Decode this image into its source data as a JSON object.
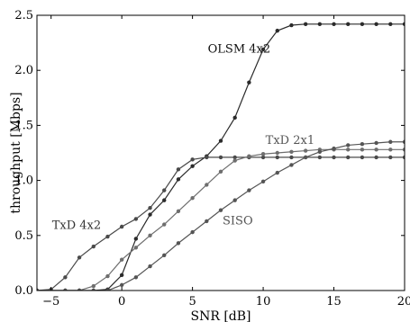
{
  "chart_data": {
    "type": "line",
    "xlabel": "SNR [dB]",
    "ylabel": "throughput [Mbps]",
    "xlim": [
      -6,
      20
    ],
    "ylim": [
      0,
      2.5
    ],
    "xticks": [
      -5,
      0,
      5,
      10,
      15,
      20
    ],
    "yticks": [
      0,
      0.5,
      1,
      1.5,
      2,
      2.5
    ],
    "xtick_labels": [
      "−5",
      "0",
      "5",
      "10",
      "15",
      "20"
    ],
    "ytick_labels": [
      "0.0",
      "0.5",
      "1.0",
      "1.5",
      "2.0",
      "2.5"
    ],
    "grid": false,
    "series": [
      {
        "name": "OLSM 4x2",
        "color": "#2b2b2b",
        "x": [
          -6,
          -5,
          -4,
          -3,
          -2,
          -1,
          0,
          1,
          2,
          3,
          4,
          5,
          6,
          7,
          8,
          9,
          10,
          11,
          12,
          13,
          14,
          15,
          16,
          17,
          18,
          19,
          20
        ],
        "y": [
          0,
          0,
          0,
          0,
          0,
          0.01,
          0.14,
          0.47,
          0.69,
          0.82,
          1.01,
          1.13,
          1.22,
          1.36,
          1.57,
          1.89,
          2.19,
          2.36,
          2.41,
          2.42,
          2.42,
          2.42,
          2.42,
          2.42,
          2.42,
          2.42,
          2.42
        ]
      },
      {
        "name": "TxD 4x2",
        "color": "#4a4a4a",
        "x": [
          -6,
          -5,
          -4,
          -3,
          -2,
          -1,
          0,
          1,
          2,
          3,
          4,
          5,
          6,
          7,
          8,
          9,
          10,
          11,
          12,
          13,
          14,
          15,
          16,
          17,
          18,
          19,
          20
        ],
        "y": [
          0,
          0.01,
          0.12,
          0.3,
          0.4,
          0.49,
          0.58,
          0.65,
          0.75,
          0.91,
          1.1,
          1.19,
          1.21,
          1.21,
          1.21,
          1.21,
          1.21,
          1.21,
          1.21,
          1.21,
          1.21,
          1.21,
          1.21,
          1.21,
          1.21,
          1.21,
          1.21
        ]
      },
      {
        "name": "TxD 2x1",
        "color": "#6e6e6e",
        "x": [
          -6,
          -5,
          -4,
          -3,
          -2,
          -1,
          0,
          1,
          2,
          3,
          4,
          5,
          6,
          7,
          8,
          9,
          10,
          11,
          12,
          13,
          14,
          15,
          16,
          17,
          18,
          19,
          20
        ],
        "y": [
          0,
          0,
          0,
          0,
          0.04,
          0.13,
          0.28,
          0.39,
          0.5,
          0.6,
          0.72,
          0.84,
          0.96,
          1.08,
          1.18,
          1.22,
          1.24,
          1.25,
          1.26,
          1.27,
          1.28,
          1.28,
          1.28,
          1.28,
          1.28,
          1.28,
          1.28
        ]
      },
      {
        "name": "SISO",
        "color": "#555555",
        "x": [
          -6,
          -5,
          -4,
          -3,
          -2,
          -1,
          0,
          1,
          2,
          3,
          4,
          5,
          6,
          7,
          8,
          9,
          10,
          11,
          12,
          13,
          14,
          15,
          16,
          17,
          18,
          19,
          20
        ],
        "y": [
          0,
          0,
          0,
          0,
          0,
          0,
          0.05,
          0.12,
          0.22,
          0.32,
          0.43,
          0.53,
          0.63,
          0.73,
          0.82,
          0.91,
          0.99,
          1.07,
          1.14,
          1.21,
          1.26,
          1.29,
          1.32,
          1.33,
          1.34,
          1.35,
          1.35
        ]
      }
    ]
  }
}
